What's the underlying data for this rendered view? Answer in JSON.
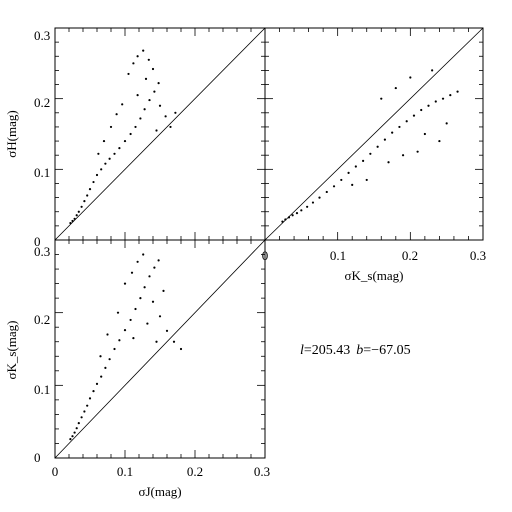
{
  "chart_data": [
    {
      "type": "scatter",
      "panel": "top-left",
      "xlabel": "",
      "ylabel": "σH(mag)",
      "xlim": [
        0,
        0.3
      ],
      "ylim": [
        0,
        0.3
      ],
      "y_tick_labels": [
        "0",
        "0.1",
        "0.2",
        "0.3"
      ],
      "reference_line": "y = x",
      "x_column": "σJ",
      "y_column": "σH",
      "points": [
        [
          0.022,
          0.024
        ],
        [
          0.025,
          0.027
        ],
        [
          0.028,
          0.03
        ],
        [
          0.031,
          0.035
        ],
        [
          0.034,
          0.04
        ],
        [
          0.038,
          0.047
        ],
        [
          0.042,
          0.055
        ],
        [
          0.046,
          0.063
        ],
        [
          0.05,
          0.072
        ],
        [
          0.055,
          0.082
        ],
        [
          0.06,
          0.092
        ],
        [
          0.066,
          0.1
        ],
        [
          0.072,
          0.108
        ],
        [
          0.078,
          0.115
        ],
        [
          0.085,
          0.122
        ],
        [
          0.092,
          0.13
        ],
        [
          0.1,
          0.14
        ],
        [
          0.108,
          0.15
        ],
        [
          0.115,
          0.16
        ],
        [
          0.122,
          0.172
        ],
        [
          0.128,
          0.185
        ],
        [
          0.135,
          0.198
        ],
        [
          0.142,
          0.21
        ],
        [
          0.148,
          0.222
        ],
        [
          0.105,
          0.235
        ],
        [
          0.112,
          0.25
        ],
        [
          0.118,
          0.26
        ],
        [
          0.126,
          0.268
        ],
        [
          0.134,
          0.255
        ],
        [
          0.14,
          0.242
        ],
        [
          0.088,
          0.178
        ],
        [
          0.096,
          0.192
        ],
        [
          0.07,
          0.14
        ],
        [
          0.062,
          0.122
        ],
        [
          0.15,
          0.19
        ],
        [
          0.158,
          0.175
        ],
        [
          0.165,
          0.16
        ],
        [
          0.172,
          0.18
        ],
        [
          0.145,
          0.155
        ],
        [
          0.08,
          0.16
        ],
        [
          0.118,
          0.205
        ],
        [
          0.13,
          0.228
        ]
      ]
    },
    {
      "type": "scatter",
      "panel": "top-right",
      "xlabel": "σK_s(mag)",
      "ylabel": "",
      "xlim": [
        0,
        0.3
      ],
      "ylim": [
        0,
        0.3
      ],
      "x_tick_labels": [
        "0",
        "0.1",
        "0.2",
        "0.3"
      ],
      "reference_line": "y = x",
      "x_column": "σK_s",
      "y_column": "σH",
      "points": [
        [
          0.024,
          0.026
        ],
        [
          0.028,
          0.029
        ],
        [
          0.033,
          0.032
        ],
        [
          0.038,
          0.035
        ],
        [
          0.044,
          0.038
        ],
        [
          0.05,
          0.042
        ],
        [
          0.058,
          0.047
        ],
        [
          0.066,
          0.053
        ],
        [
          0.075,
          0.06
        ],
        [
          0.085,
          0.068
        ],
        [
          0.095,
          0.076
        ],
        [
          0.105,
          0.085
        ],
        [
          0.115,
          0.095
        ],
        [
          0.125,
          0.104
        ],
        [
          0.135,
          0.112
        ],
        [
          0.145,
          0.122
        ],
        [
          0.155,
          0.132
        ],
        [
          0.165,
          0.142
        ],
        [
          0.175,
          0.152
        ],
        [
          0.185,
          0.16
        ],
        [
          0.195,
          0.168
        ],
        [
          0.205,
          0.176
        ],
        [
          0.215,
          0.184
        ],
        [
          0.225,
          0.19
        ],
        [
          0.235,
          0.196
        ],
        [
          0.245,
          0.2
        ],
        [
          0.255,
          0.205
        ],
        [
          0.265,
          0.21
        ],
        [
          0.2,
          0.23
        ],
        [
          0.18,
          0.215
        ],
        [
          0.16,
          0.2
        ],
        [
          0.22,
          0.15
        ],
        [
          0.24,
          0.14
        ],
        [
          0.14,
          0.085
        ],
        [
          0.12,
          0.078
        ],
        [
          0.19,
          0.12
        ],
        [
          0.21,
          0.125
        ],
        [
          0.25,
          0.165
        ],
        [
          0.23,
          0.24
        ],
        [
          0.17,
          0.11
        ]
      ]
    },
    {
      "type": "scatter",
      "panel": "bottom-left",
      "xlabel": "σJ(mag)",
      "ylabel": "σK_s(mag)",
      "xlim": [
        0,
        0.3
      ],
      "ylim": [
        0,
        0.3
      ],
      "x_tick_labels": [
        "0",
        "0.1",
        "0.2",
        "0.3"
      ],
      "y_tick_labels": [
        "0",
        "0.1",
        "0.2",
        "0.3"
      ],
      "reference_line": "y = x",
      "x_column": "σJ",
      "y_column": "σK_s",
      "points": [
        [
          0.022,
          0.026
        ],
        [
          0.025,
          0.03
        ],
        [
          0.028,
          0.035
        ],
        [
          0.031,
          0.041
        ],
        [
          0.034,
          0.048
        ],
        [
          0.038,
          0.056
        ],
        [
          0.042,
          0.064
        ],
        [
          0.046,
          0.072
        ],
        [
          0.05,
          0.082
        ],
        [
          0.055,
          0.092
        ],
        [
          0.06,
          0.102
        ],
        [
          0.066,
          0.112
        ],
        [
          0.072,
          0.124
        ],
        [
          0.078,
          0.136
        ],
        [
          0.085,
          0.15
        ],
        [
          0.092,
          0.162
        ],
        [
          0.1,
          0.176
        ],
        [
          0.108,
          0.19
        ],
        [
          0.115,
          0.205
        ],
        [
          0.122,
          0.22
        ],
        [
          0.128,
          0.235
        ],
        [
          0.135,
          0.25
        ],
        [
          0.142,
          0.262
        ],
        [
          0.148,
          0.272
        ],
        [
          0.1,
          0.24
        ],
        [
          0.11,
          0.255
        ],
        [
          0.118,
          0.27
        ],
        [
          0.126,
          0.28
        ],
        [
          0.14,
          0.215
        ],
        [
          0.15,
          0.195
        ],
        [
          0.16,
          0.175
        ],
        [
          0.17,
          0.16
        ],
        [
          0.18,
          0.15
        ],
        [
          0.09,
          0.2
        ],
        [
          0.075,
          0.17
        ],
        [
          0.065,
          0.14
        ],
        [
          0.155,
          0.23
        ],
        [
          0.132,
          0.185
        ],
        [
          0.112,
          0.165
        ],
        [
          0.145,
          0.16
        ]
      ]
    }
  ],
  "annotation": {
    "l_label": "l",
    "l_value": "=205.43",
    "b_label": "b",
    "b_value": "=−67.05"
  }
}
